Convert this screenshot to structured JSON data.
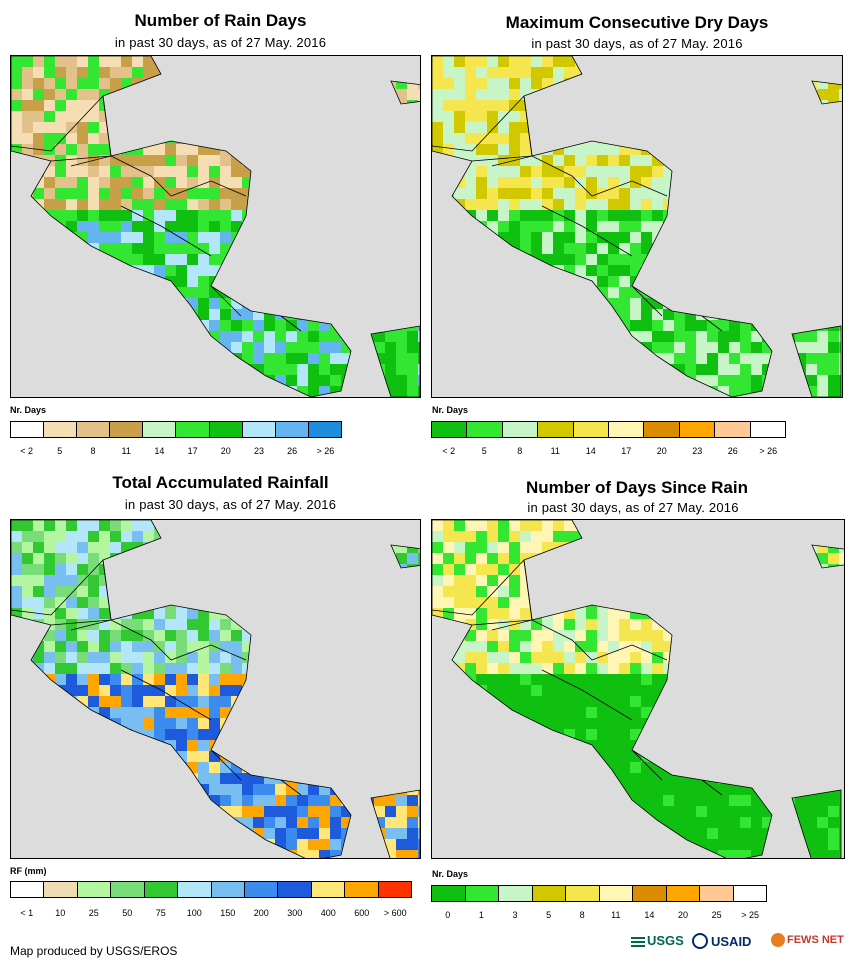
{
  "panels": [
    {
      "title": "Number of Rain Days",
      "subtitle": "in past 30 days, as of 27 May. 2016",
      "legend_title": "Nr. Days",
      "ticks": [
        "< 2",
        "5",
        "8",
        "11",
        "14",
        "17",
        "20",
        "23",
        "26",
        "> 26"
      ],
      "colors": [
        "#ffffff",
        "#f5deb3",
        "#e2c28a",
        "#c8a04a",
        "#c8f5c8",
        "#32e632",
        "#10c010",
        "#b4e6fa",
        "#64b4f0",
        "#1e8cdc"
      ]
    },
    {
      "title": "Maximum Consecutive Dry Days",
      "subtitle": "in past 30 days, as of 27 May. 2016",
      "legend_title": "Nr. Days",
      "ticks": [
        "< 2",
        "5",
        "8",
        "11",
        "14",
        "17",
        "20",
        "23",
        "26",
        "> 26"
      ],
      "colors": [
        "#10c010",
        "#32e632",
        "#c8f5c8",
        "#d2c800",
        "#f5e650",
        "#fff5b4",
        "#dc8c00",
        "#ffa500",
        "#ffc896",
        "#ffffff"
      ]
    },
    {
      "title": "Total Accumulated Rainfall",
      "subtitle": "in past 30 days, as of 27 May. 2016",
      "legend_title": "RF (mm)",
      "ticks": [
        "< 1",
        "10",
        "25",
        "50",
        "75",
        "100",
        "150",
        "200",
        "300",
        "400",
        "600",
        "> 600"
      ],
      "colors": [
        "#ffffff",
        "#f0dcb4",
        "#b4f5a0",
        "#78dc78",
        "#32c832",
        "#b4e6fa",
        "#78bef0",
        "#3c8cf0",
        "#1e5adc",
        "#ffe678",
        "#ffa500",
        "#ff3200"
      ]
    },
    {
      "title": "Number of Days Since Rain",
      "subtitle": "in past 30 days, as of 27 May. 2016",
      "legend_title": "Nr. Days",
      "ticks": [
        "0",
        "1",
        "3",
        "5",
        "8",
        "11",
        "14",
        "20",
        "25",
        "> 25"
      ],
      "colors": [
        "#10c010",
        "#32e632",
        "#c8f5c8",
        "#d2c800",
        "#f5e650",
        "#fff5b4",
        "#dc8c00",
        "#ffa500",
        "#ffc896",
        "#ffffff"
      ]
    }
  ],
  "credit": "Map produced by USGS/EROS",
  "logos": {
    "usgs": "USGS",
    "usaid": "USAID",
    "fewsnet": "FEWS NET"
  },
  "map_background": "#dcdcdc"
}
